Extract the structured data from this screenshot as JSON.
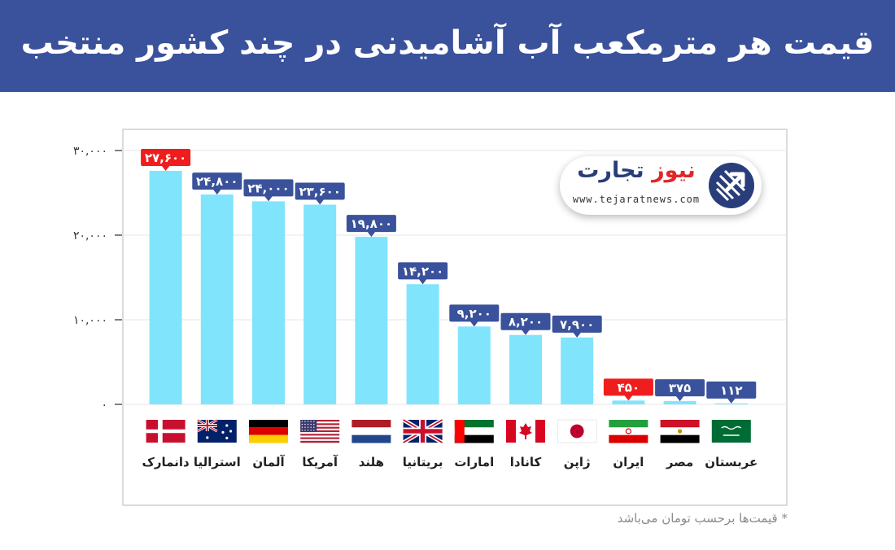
{
  "header": {
    "title": "قیمت هر مترمکعب آب آشامیدنی در چند کشور منتخب"
  },
  "logo": {
    "name_part1": "تجارت",
    "name_part2": "نیوز",
    "url": "www.tejaratnews.com"
  },
  "footnote": "* قیمت‌ها برحسب تومان می‌باشد",
  "colors": {
    "header_bg": "#3a519b",
    "bar": "#80e4fd",
    "label_default": "#3a519b",
    "label_highlight": "#ef1d1d",
    "grid": "#e6e6e6",
    "frame": "#cfcfcf"
  },
  "chart_data": {
    "type": "bar",
    "title": "قیمت هر مترمکعب آب آشامیدنی در چند کشور منتخب",
    "unit_note": "* قیمت‌ها برحسب تومان می‌باشد",
    "ylim": [
      0,
      30000
    ],
    "yticks": [
      0,
      10000,
      20000,
      30000
    ],
    "ytick_labels": [
      "۰",
      "۱۰,۰۰۰",
      "۲۰,۰۰۰",
      "۳۰,۰۰۰"
    ],
    "grid": true,
    "categories": [
      "دانمارک",
      "استرالیا",
      "آلمان",
      "آمریکا",
      "هلند",
      "بریتانیا",
      "امارات",
      "کانادا",
      "ژاپن",
      "ایران",
      "مصر",
      "عربستان"
    ],
    "flags": [
      "denmark-flag-icon",
      "australia-flag-icon",
      "germany-flag-icon",
      "usa-flag-icon",
      "netherlands-flag-icon",
      "uk-flag-icon",
      "uae-flag-icon",
      "canada-flag-icon",
      "japan-flag-icon",
      "iran-flag-icon",
      "egypt-flag-icon",
      "saudi-arabia-flag-icon"
    ],
    "values": [
      27600,
      24800,
      24000,
      23600,
      19800,
      14200,
      9200,
      8200,
      7900,
      450,
      375,
      112
    ],
    "value_labels": [
      "۲۷,۶۰۰",
      "۲۴,۸۰۰",
      "۲۴,۰۰۰",
      "۲۳,۶۰۰",
      "۱۹,۸۰۰",
      "۱۴,۲۰۰",
      "۹,۲۰۰",
      "۸,۲۰۰",
      "۷,۹۰۰",
      "۴۵۰",
      "۳۷۵",
      "۱۱۲"
    ],
    "highlighted": [
      "دانمارک",
      "ایران"
    ]
  }
}
